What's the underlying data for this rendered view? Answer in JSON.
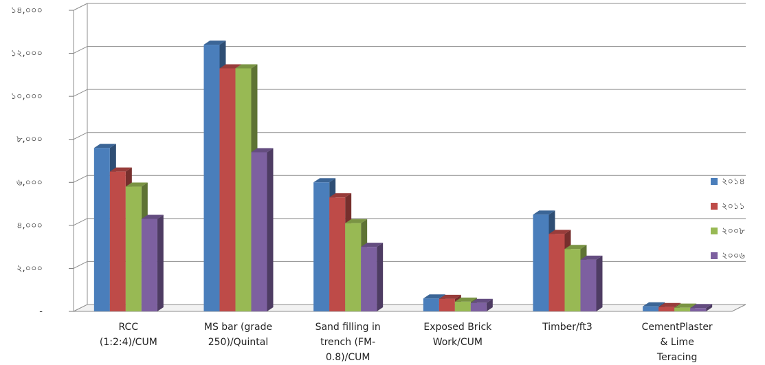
{
  "chart_data": {
    "type": "bar",
    "title": "",
    "xlabel": "",
    "ylabel": "",
    "ylim": [
      0,
      14000
    ],
    "yticks": [
      "-",
      "২,০০০",
      "৪,০০০",
      "৬,০০০",
      "৮,০০০",
      "১০,০০০",
      "১২,০০০",
      "১৪,০০০"
    ],
    "grid": true,
    "legend_position": "right",
    "categories": [
      [
        "RCC",
        "(1:2:4)/CUM"
      ],
      [
        "MS bar (grade",
        "250)/Quintal"
      ],
      [
        "Sand filling in",
        "trench (FM-",
        "0.8)/CUM"
      ],
      [
        "Exposed Brick",
        "Work/CUM"
      ],
      [
        "Timber/ft3"
      ],
      [
        "CementPlaster",
        "& Lime",
        "Teracing"
      ]
    ],
    "series": [
      {
        "name": "২০১৪",
        "color": "#4a7ebb",
        "values": [
          7600,
          12400,
          6000,
          600,
          4500,
          230
        ]
      },
      {
        "name": "২০১১",
        "color": "#be4b48",
        "values": [
          6500,
          11300,
          5300,
          580,
          3600,
          200
        ]
      },
      {
        "name": "২০০৮",
        "color": "#98b954",
        "values": [
          5800,
          11300,
          4100,
          450,
          2900,
          170
        ]
      },
      {
        "name": "২০০৬",
        "color": "#7d60a0",
        "values": [
          4300,
          7400,
          3000,
          390,
          2400,
          150
        ]
      }
    ]
  }
}
